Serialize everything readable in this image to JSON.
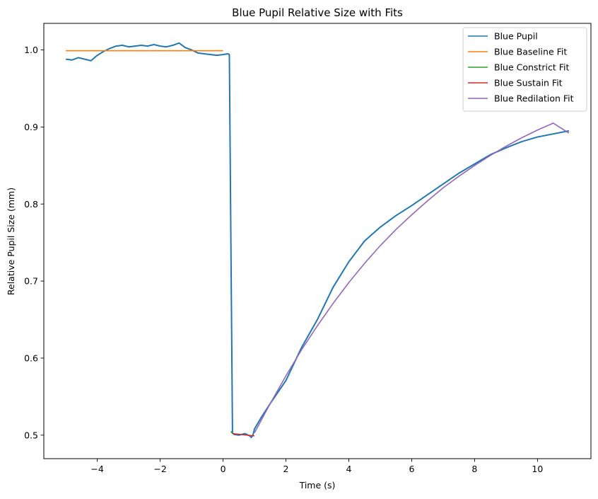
{
  "chart_data": {
    "type": "line",
    "title": "Blue Pupil Relative Size with Fits",
    "xlabel": "Time (s)",
    "ylabel": "Relative Pupil Size (mm)",
    "xlim": [
      -5.7,
      11.7
    ],
    "ylim": [
      0.4695,
      1.0345
    ],
    "xticks": [
      -4,
      -2,
      0,
      2,
      4,
      6,
      8,
      10
    ],
    "xtick_labels": [
      "−4",
      "−2",
      "0",
      "2",
      "4",
      "6",
      "8",
      "10"
    ],
    "yticks": [
      0.5,
      0.6,
      0.7,
      0.8,
      0.9,
      1.0
    ],
    "ytick_labels": [
      "0.5",
      "0.6",
      "0.7",
      "0.8",
      "0.9",
      "1.0"
    ],
    "grid": false,
    "legend_position": "top-right",
    "series": [
      {
        "name": "Blue Pupil",
        "color": "#1f77b4",
        "x": [
          -5.0,
          -4.8,
          -4.6,
          -4.4,
          -4.2,
          -4.0,
          -3.8,
          -3.6,
          -3.4,
          -3.2,
          -3.0,
          -2.8,
          -2.6,
          -2.4,
          -2.2,
          -2.0,
          -1.8,
          -1.6,
          -1.4,
          -1.2,
          -1.0,
          -0.8,
          -0.6,
          -0.4,
          -0.2,
          0.0,
          0.15,
          0.2,
          0.3,
          0.35,
          0.5,
          0.7,
          0.85,
          0.9,
          0.95,
          1.0,
          1.2,
          1.5,
          2.0,
          2.5,
          3.0,
          3.5,
          4.0,
          4.5,
          5.0,
          5.5,
          6.0,
          6.5,
          7.0,
          7.5,
          8.0,
          8.5,
          9.0,
          9.5,
          10.0,
          10.5,
          11.0
        ],
        "y": [
          0.988,
          0.987,
          0.99,
          0.988,
          0.986,
          0.993,
          0.998,
          1.002,
          1.005,
          1.006,
          1.004,
          1.005,
          1.006,
          1.005,
          1.007,
          1.005,
          1.004,
          1.006,
          1.009,
          1.003,
          1.0,
          0.996,
          0.995,
          0.994,
          0.993,
          0.994,
          0.995,
          0.994,
          0.503,
          0.501,
          0.5,
          0.502,
          0.499,
          0.497,
          0.5,
          0.508,
          0.522,
          0.541,
          0.571,
          0.614,
          0.65,
          0.692,
          0.725,
          0.752,
          0.77,
          0.785,
          0.798,
          0.812,
          0.826,
          0.84,
          0.852,
          0.864,
          0.873,
          0.881,
          0.887,
          0.891,
          0.895
        ]
      },
      {
        "name": "Blue Baseline Fit",
        "color": "#ff7f0e",
        "x": [
          -5.0,
          0.0
        ],
        "y": [
          0.999,
          0.999
        ]
      },
      {
        "name": "Blue Constrict Fit",
        "color": "#2ca02c",
        "x": [
          0.25,
          0.3
        ],
        "y": [
          0.505,
          0.502
        ]
      },
      {
        "name": "Blue Sustain Fit",
        "color": "#d62728",
        "x": [
          0.3,
          1.0
        ],
        "y": [
          0.502,
          0.499
        ]
      },
      {
        "name": "Blue Redilation Fit",
        "color": "#9467bd",
        "x": [
          1.0,
          1.5,
          2.0,
          2.5,
          3.0,
          3.5,
          4.0,
          4.5,
          5.0,
          5.5,
          6.0,
          6.5,
          7.0,
          7.5,
          8.0,
          8.5,
          9.0,
          9.5,
          10.0,
          10.5,
          11.0
        ],
        "y": [
          0.503,
          0.541,
          0.577,
          0.611,
          0.642,
          0.671,
          0.698,
          0.723,
          0.746,
          0.767,
          0.786,
          0.804,
          0.821,
          0.836,
          0.85,
          0.863,
          0.875,
          0.886,
          0.896,
          0.905,
          0.892
        ]
      }
    ]
  }
}
